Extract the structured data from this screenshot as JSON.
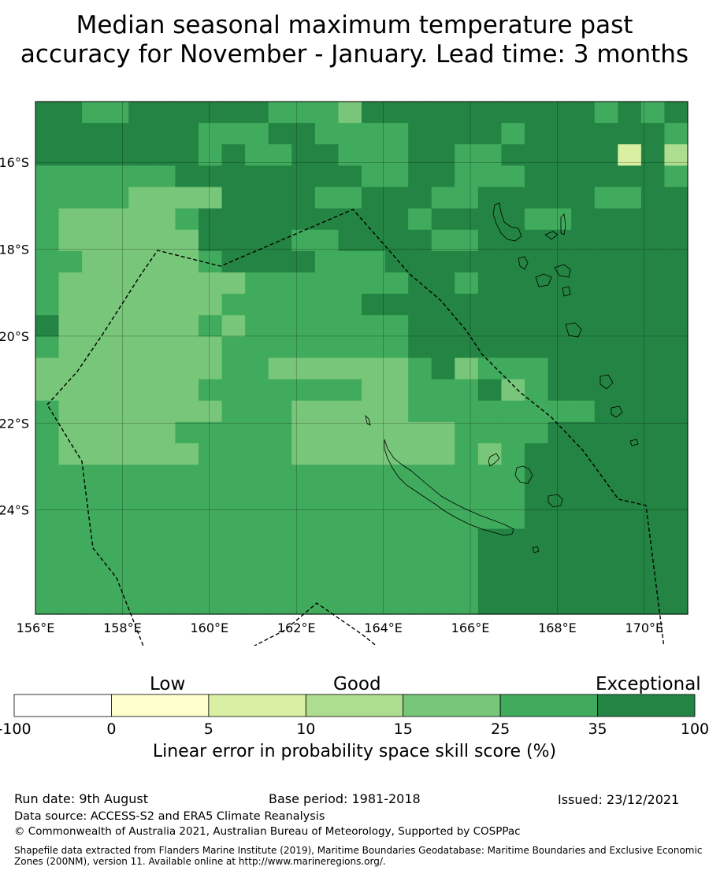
{
  "title": {
    "line1": "Median seasonal maximum temperature past",
    "line2": "accuracy for November - January. Lead time: 3 months"
  },
  "map": {
    "lon_labels": [
      "156°E",
      "158°E",
      "160°E",
      "162°E",
      "164°E",
      "166°E",
      "168°E",
      "170°E"
    ],
    "lon_values": [
      156,
      158,
      160,
      162,
      164,
      166,
      168,
      170
    ],
    "lat_labels": [
      "16°S",
      "18°S",
      "20°S",
      "22°S",
      "24°S"
    ],
    "lat_values": [
      -16,
      -18,
      -20,
      -22,
      -24
    ],
    "lon_range": [
      156,
      171
    ],
    "lat_range": [
      -26.4,
      -14.6
    ],
    "grid_rows": [
      "6655666666555466666666665656",
      "6666666555665555666656666665",
      "6666666565566555665566666263",
      "5555556666666655665556666665",
      "5555444466665566655666665566",
      "5444445666666666566665566666",
      "5444444666655666655666666666",
      "5544444566665556666666666666",
      "5444444445555555665666666666",
      "5444444455555566666666666666",
      "6444444545555555666666666666",
      "5444444455555555666666666666",
      "4444444455444444564555666666",
      "4444444555555544555645666666",
      "5444444455544444555555556666",
      "5444445555544444445555666666",
      "5444444555544444445456666666",
      "5555555555555555555556666666",
      "5555555555555555555556666666",
      "5555555555555555555556666666",
      "5555555555555555555666666666",
      "5555555555555555555666666666",
      "5555555555555555555666666666",
      "5555555555555555555666666666"
    ]
  },
  "legend": {
    "categories": [
      {
        "label": "Low",
        "range": [
          "0",
          "5"
        ]
      },
      {
        "label": "Good",
        "range": [
          "10",
          "15"
        ]
      },
      {
        "label": "Exceptional",
        "range": [
          "35",
          "100"
        ]
      }
    ],
    "low_label": "Low",
    "good_label": "Good",
    "exceptional_label": "Exceptional",
    "tick_labels": [
      "-100",
      "0",
      "5",
      "10",
      "15",
      "25",
      "35",
      "100"
    ],
    "colors": [
      "#ffffff",
      "#ffffcc",
      "#d9f0a3",
      "#addd8e",
      "#78c679",
      "#41ab5d",
      "#238443"
    ],
    "bins": [
      -100,
      0,
      5,
      10,
      15,
      25,
      35,
      100
    ],
    "axis_label": "Linear error in probability space skill score (%)"
  },
  "footer": {
    "run_date": "Run date: 9th August",
    "base_period": "Base period: 1981-2018",
    "issued": "Issued: 23/12/2021",
    "data_source": "Data source: ACCESS-S2 and ERA5 Climate Reanalysis",
    "copyright": "© Commonwealth of Australia 2021, Australian Bureau of Meteorology, Supported by COSPPac",
    "shapefile": "Shapefile data extracted from Flanders Marine Institute (2019), Maritime Boundaries Geodatabase: Maritime Boundaries and Exclusive Economic Zones (200NM), version 11. Available online at http://www.marineregions.org/."
  }
}
